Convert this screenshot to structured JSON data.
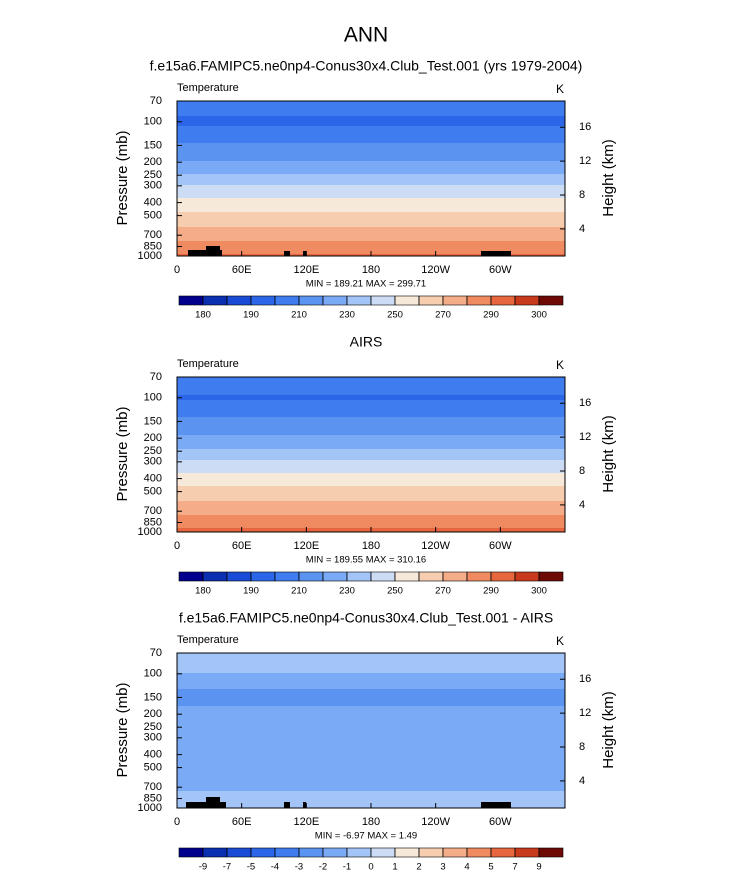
{
  "title": "ANN",
  "chart_data": [
    {
      "type": "contour",
      "title": "f.e15a6.FAMIPC5.ne0np4-Conus30x4.Club_Test.001 (yrs 1979-2004)",
      "label_left": "Temperature",
      "label_right": "K",
      "ylabel": "Pressure (mb)",
      "y2label": "Height (km)",
      "stats": "MIN = 189.21  MAX = 299.71",
      "xlim": [
        0,
        360
      ],
      "xticks": [
        0,
        {
          "value": 60,
          "label": "60E"
        },
        {
          "value": 120,
          "label": "120E"
        },
        180,
        {
          "value": 240,
          "label": "120W"
        },
        {
          "value": 300,
          "label": "60W"
        }
      ],
      "ylim": [
        1000,
        70
      ],
      "yscale": "log",
      "yticks": [
        70,
        100,
        150,
        200,
        250,
        300,
        400,
        500,
        700,
        850,
        1000
      ],
      "y2lim": [
        0.8,
        19.1
      ],
      "y2ticks": [
        4,
        8,
        12,
        16
      ],
      "profile": {
        "pressure": [
          70,
          100,
          150,
          200,
          250,
          300,
          400,
          500,
          700,
          850,
          1000
        ],
        "values": [
          205,
          198,
          212,
          221,
          231,
          241,
          254,
          263,
          276,
          285,
          292
        ]
      },
      "colorbar": {
        "levels": [
          180,
          185,
          190,
          200,
          210,
          220,
          230,
          240,
          250,
          260,
          270,
          280,
          290,
          295,
          300
        ],
        "label_stride": 2,
        "colors": [
          "#00008c",
          "#0a2fb0",
          "#1a4bd6",
          "#2b66e8",
          "#3f7cf0",
          "#5a93f0",
          "#7aa9f5",
          "#a3c4f7",
          "#cddcf5",
          "#f7e9da",
          "#f7cdb0",
          "#f5ac88",
          "#f08a60",
          "#e8663d",
          "#c93a1c",
          "#6e0a05"
        ]
      }
    },
    {
      "type": "contour",
      "title": "AIRS",
      "label_left": "Temperature",
      "label_right": "K",
      "ylabel": "Pressure (mb)",
      "y2label": "Height (km)",
      "stats": "MIN = 189.55  MAX = 310.16",
      "xlim": [
        0,
        360
      ],
      "xticks": [
        0,
        {
          "value": 60,
          "label": "60E"
        },
        {
          "value": 120,
          "label": "120E"
        },
        180,
        {
          "value": 240,
          "label": "120W"
        },
        {
          "value": 300,
          "label": "60W"
        }
      ],
      "ylim": [
        1000,
        70
      ],
      "yscale": "log",
      "yticks": [
        70,
        100,
        150,
        200,
        250,
        300,
        400,
        500,
        700,
        850,
        1000
      ],
      "y2lim": [
        0.8,
        19.1
      ],
      "y2ticks": [
        4,
        8,
        12,
        16
      ],
      "profile": {
        "pressure": [
          70,
          100,
          150,
          200,
          250,
          300,
          400,
          500,
          700,
          850,
          1000
        ],
        "values": [
          206,
          199,
          213,
          222,
          232,
          242,
          255,
          264,
          277,
          286,
          293
        ]
      },
      "colorbar": {
        "levels": [
          180,
          185,
          190,
          200,
          210,
          220,
          230,
          240,
          250,
          260,
          270,
          280,
          290,
          295,
          300
        ],
        "label_stride": 2,
        "colors": [
          "#00008c",
          "#0a2fb0",
          "#1a4bd6",
          "#2b66e8",
          "#3f7cf0",
          "#5a93f0",
          "#7aa9f5",
          "#a3c4f7",
          "#cddcf5",
          "#f7e9da",
          "#f7cdb0",
          "#f5ac88",
          "#f08a60",
          "#e8663d",
          "#c93a1c",
          "#6e0a05"
        ]
      }
    },
    {
      "type": "contour",
      "title": "f.e15a6.FAMIPC5.ne0np4-Conus30x4.Club_Test.001 - AIRS",
      "label_left": "Temperature",
      "label_right": "K",
      "ylabel": "Pressure (mb)",
      "y2label": "Height (km)",
      "stats": "MIN = -6.97  MAX =  1.49",
      "xlim": [
        0,
        360
      ],
      "xticks": [
        0,
        {
          "value": 60,
          "label": "60E"
        },
        {
          "value": 120,
          "label": "120E"
        },
        180,
        {
          "value": 240,
          "label": "120W"
        },
        {
          "value": 300,
          "label": "60W"
        }
      ],
      "ylim": [
        1000,
        70
      ],
      "yscale": "log",
      "yticks": [
        70,
        100,
        150,
        200,
        250,
        300,
        400,
        500,
        700,
        850,
        1000
      ],
      "y2lim": [
        0.8,
        19.1
      ],
      "y2ticks": [
        4,
        8,
        12,
        16
      ],
      "profile": {
        "pressure": [
          70,
          90,
          110,
          150,
          200,
          300,
          500,
          700,
          850,
          1000
        ],
        "values": [
          -0.5,
          -0.6,
          -1.5,
          -2.5,
          -1.5,
          -1.4,
          -1.4,
          -1.2,
          -0.5,
          -0.3
        ]
      },
      "colorbar": {
        "levels": [
          -9,
          -7,
          -5,
          -4,
          -3,
          -2,
          -1,
          0,
          1,
          2,
          3,
          4,
          5,
          7,
          9
        ],
        "label_stride": 1,
        "colors": [
          "#00008c",
          "#0a2fb0",
          "#1a4bd6",
          "#2b66e8",
          "#3f7cf0",
          "#5a93f0",
          "#7aa9f5",
          "#a3c4f7",
          "#cddcf5",
          "#f7e9da",
          "#f7cdb0",
          "#f5ac88",
          "#f08a60",
          "#e8663d",
          "#c93a1c",
          "#6e0a05"
        ]
      }
    }
  ]
}
